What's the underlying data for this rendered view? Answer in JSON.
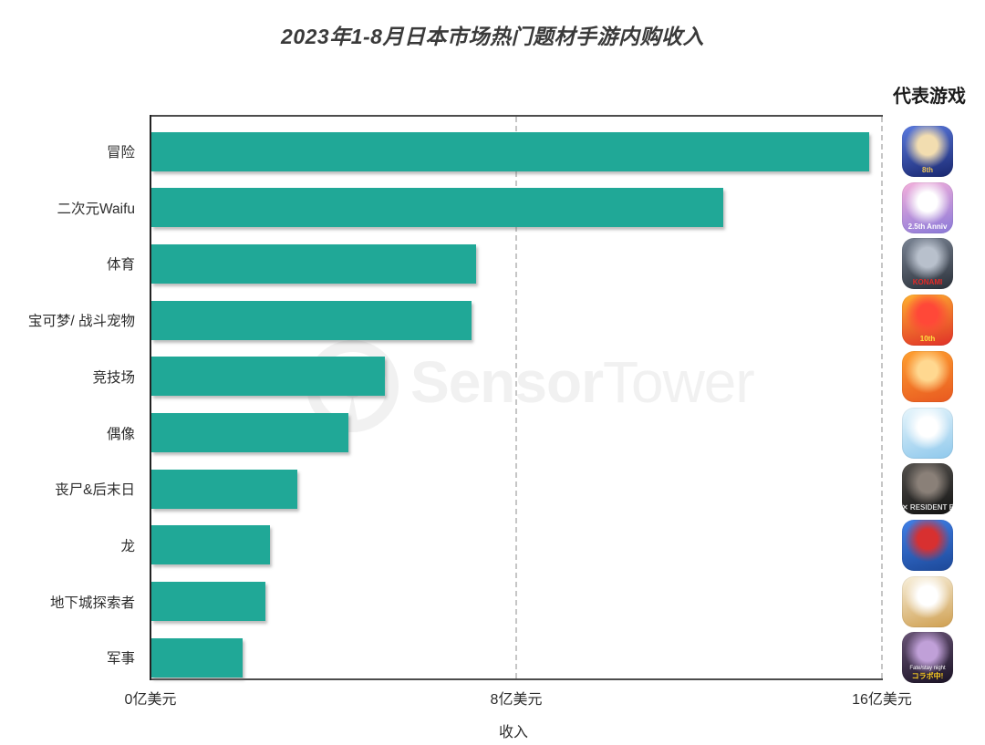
{
  "legend_header": "代表游戏",
  "watermark": {
    "text_bold": "Sensor",
    "text_light": "Tower",
    "color": "#f1f1f1",
    "logo": "radar-tower-ring"
  },
  "chart_data": {
    "type": "bar",
    "orientation": "horizontal",
    "title": "2023年1-8月日本市场热门题材手游内购收入",
    "categories": [
      "冒险",
      "二次元Waifu",
      "体育",
      "宝可梦/ 战斗宠物",
      "竞技场",
      "偶像",
      "丧尸&后末日",
      "龙",
      "地下城探索者",
      "军事"
    ],
    "values": [
      15.7,
      12.5,
      7.1,
      7.0,
      5.1,
      4.3,
      3.2,
      2.6,
      2.5,
      2.0
    ],
    "unit": "亿美元",
    "xlabel": "收入",
    "xlim": [
      0,
      16
    ],
    "xticks": [
      {
        "value": 0,
        "label": "0亿美元"
      },
      {
        "value": 8,
        "label": "8亿美元"
      },
      {
        "value": 16,
        "label": "16亿美元"
      }
    ],
    "bar_color": "#20a897",
    "grid": {
      "vertical_dashed_at": [
        8,
        16
      ]
    },
    "legend_position": "right-icon-column"
  },
  "games": [
    {
      "category": "冒险",
      "icon": "game-icon-adventure",
      "badge": "8th",
      "badge_color": "#f0c75a",
      "top": "#5a7ae0",
      "bottom": "#18266e",
      "accent": "#f2ddb0",
      "sub": ""
    },
    {
      "category": "二次元Waifu",
      "icon": "game-icon-anime-waifu",
      "badge": "2.5th Anniv",
      "badge_color": "#ffffff",
      "top": "#f4b0dc",
      "bottom": "#8a79d8",
      "accent": "#ffffff",
      "sub": ""
    },
    {
      "category": "体育",
      "icon": "game-icon-baseball",
      "badge": "KONAMI",
      "badge_color": "#e22a28",
      "top": "#7a8494",
      "bottom": "#2a3039",
      "accent": "#b8c0cc",
      "sub": ""
    },
    {
      "category": "宝可梦/ 战斗宠物",
      "icon": "game-icon-battle-pets",
      "badge": "10th",
      "badge_color": "#ffe040",
      "top": "#ffb030",
      "bottom": "#e03028",
      "accent": "#ff4838",
      "sub": ""
    },
    {
      "category": "竞技场",
      "icon": "game-icon-arena",
      "badge": "",
      "badge_color": "#ffffff",
      "top": "#ffa030",
      "bottom": "#e85820",
      "accent": "#ffd890",
      "sub": ""
    },
    {
      "category": "偶像",
      "icon": "game-icon-idol",
      "badge": "",
      "badge_color": "#ffffff",
      "top": "#e8f6fc",
      "bottom": "#8ec8ec",
      "accent": "#ffffff",
      "sub": ""
    },
    {
      "category": "丧尸&后末日",
      "icon": "game-icon-zombie",
      "badge": "✕ RESIDENT EVIL",
      "badge_color": "#d8d8d8",
      "top": "#55524e",
      "bottom": "#121212",
      "accent": "#8a8078",
      "sub": ""
    },
    {
      "category": "龙",
      "icon": "game-icon-dragon",
      "badge": "",
      "badge_color": "#ffffff",
      "top": "#4080e8",
      "bottom": "#1c4898",
      "accent": "#d83030",
      "sub": ""
    },
    {
      "category": "地下城探索者",
      "icon": "game-icon-dungeon-crawler",
      "badge": "",
      "badge_color": "#ffffff",
      "top": "#f8f0dc",
      "bottom": "#cf9f50",
      "accent": "#ffffff",
      "sub": ""
    },
    {
      "category": "军事",
      "icon": "game-icon-military",
      "badge": "コラボ中!",
      "badge_color": "#ffd020",
      "top": "#6a5578",
      "bottom": "#1a1224",
      "accent": "#c0a0d8",
      "sub": "Fate/stay night"
    }
  ]
}
